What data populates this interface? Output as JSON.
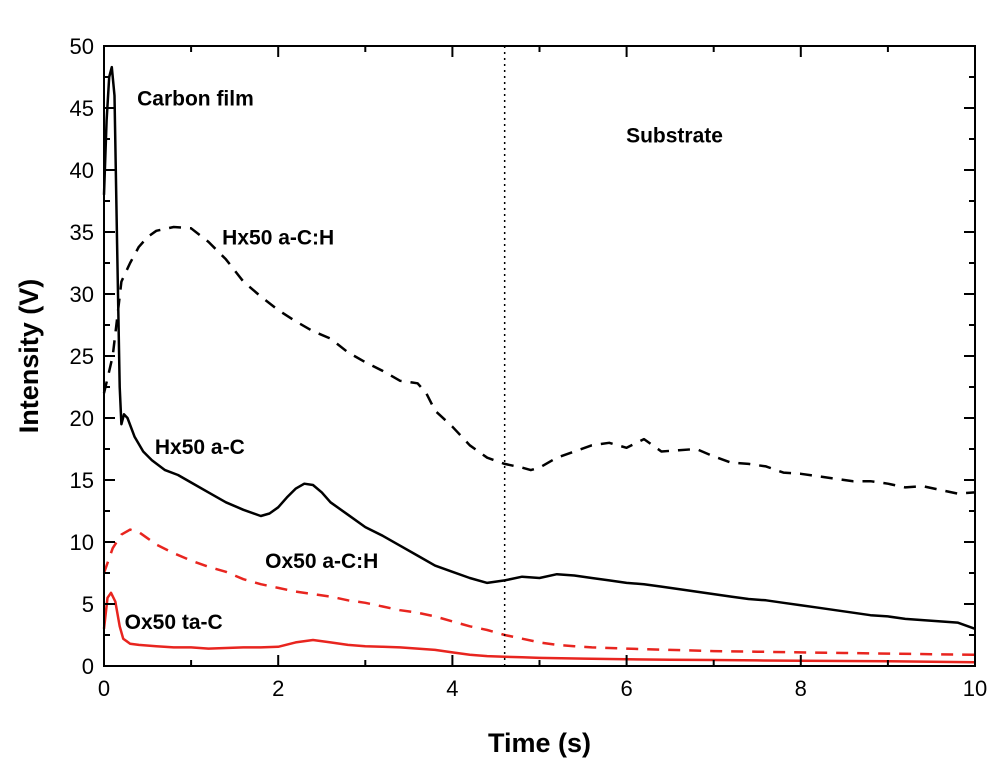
{
  "chart_data": {
    "type": "line",
    "title": "",
    "xlabel": "Time (s)",
    "ylabel": "Intensity (V)",
    "xlim": [
      0,
      10
    ],
    "ylim": [
      0,
      50
    ],
    "x_ticks": [
      "0",
      "2",
      "4",
      "6",
      "8",
      "10"
    ],
    "y_ticks": [
      "0",
      "5",
      "10",
      "15",
      "20",
      "25",
      "30",
      "35",
      "40",
      "45",
      "50"
    ],
    "grid": false,
    "legend": "none",
    "vertical_marker": {
      "x": 4.6,
      "style": "dotted"
    },
    "annotations": [
      {
        "text": "Carbon film",
        "x": 1.05,
        "y": 45.2
      },
      {
        "text": "Substrate",
        "x": 6.55,
        "y": 42.2
      },
      {
        "text": "Hx50 a-C:H",
        "x": 2.0,
        "y": 34.0
      },
      {
        "text": "Hx50 a-C",
        "x": 1.1,
        "y": 17.1
      },
      {
        "text": "Ox50 a-C:H",
        "x": 2.5,
        "y": 7.9
      },
      {
        "text": "Ox50 ta-C",
        "x": 0.8,
        "y": 3.0
      }
    ],
    "series": [
      {
        "name": "Hx50 a-C:H",
        "color": "#000000",
        "dash": "dashed",
        "points": [
          [
            0.0,
            22.0
          ],
          [
            0.05,
            23.5
          ],
          [
            0.1,
            25.0
          ],
          [
            0.15,
            28.0
          ],
          [
            0.2,
            31.0
          ],
          [
            0.3,
            32.5
          ],
          [
            0.4,
            33.8
          ],
          [
            0.5,
            34.6
          ],
          [
            0.6,
            35.1
          ],
          [
            0.8,
            35.4
          ],
          [
            1.0,
            35.3
          ],
          [
            1.2,
            34.2
          ],
          [
            1.4,
            32.8
          ],
          [
            1.6,
            31.0
          ],
          [
            1.8,
            29.8
          ],
          [
            2.0,
            28.7
          ],
          [
            2.2,
            27.8
          ],
          [
            2.4,
            27.0
          ],
          [
            2.6,
            26.4
          ],
          [
            2.8,
            25.3
          ],
          [
            3.0,
            24.5
          ],
          [
            3.2,
            23.8
          ],
          [
            3.4,
            23.0
          ],
          [
            3.6,
            22.8
          ],
          [
            3.7,
            22.0
          ],
          [
            3.8,
            20.6
          ],
          [
            4.0,
            19.3
          ],
          [
            4.2,
            17.8
          ],
          [
            4.4,
            16.8
          ],
          [
            4.6,
            16.3
          ],
          [
            4.8,
            16.0
          ],
          [
            4.9,
            15.8
          ],
          [
            5.0,
            16.0
          ],
          [
            5.2,
            16.8
          ],
          [
            5.4,
            17.3
          ],
          [
            5.6,
            17.8
          ],
          [
            5.8,
            18.0
          ],
          [
            6.0,
            17.6
          ],
          [
            6.2,
            18.3
          ],
          [
            6.4,
            17.3
          ],
          [
            6.6,
            17.4
          ],
          [
            6.8,
            17.5
          ],
          [
            7.0,
            16.9
          ],
          [
            7.2,
            16.4
          ],
          [
            7.4,
            16.3
          ],
          [
            7.6,
            16.1
          ],
          [
            7.8,
            15.6
          ],
          [
            8.0,
            15.5
          ],
          [
            8.2,
            15.3
          ],
          [
            8.4,
            15.1
          ],
          [
            8.6,
            14.9
          ],
          [
            8.8,
            14.9
          ],
          [
            9.0,
            14.7
          ],
          [
            9.2,
            14.4
          ],
          [
            9.4,
            14.5
          ],
          [
            9.6,
            14.2
          ],
          [
            9.8,
            13.9
          ],
          [
            10.0,
            14.0
          ]
        ]
      },
      {
        "name": "Hx50 a-C",
        "color": "#000000",
        "dash": "solid",
        "points": [
          [
            0.0,
            38.0
          ],
          [
            0.03,
            44.0
          ],
          [
            0.06,
            47.5
          ],
          [
            0.09,
            48.3
          ],
          [
            0.12,
            46.0
          ],
          [
            0.15,
            34.0
          ],
          [
            0.18,
            22.5
          ],
          [
            0.2,
            19.5
          ],
          [
            0.23,
            20.3
          ],
          [
            0.27,
            20.0
          ],
          [
            0.35,
            18.5
          ],
          [
            0.45,
            17.3
          ],
          [
            0.55,
            16.6
          ],
          [
            0.7,
            15.8
          ],
          [
            0.85,
            15.4
          ],
          [
            1.0,
            14.8
          ],
          [
            1.2,
            14.0
          ],
          [
            1.4,
            13.2
          ],
          [
            1.6,
            12.6
          ],
          [
            1.8,
            12.1
          ],
          [
            1.9,
            12.3
          ],
          [
            2.0,
            12.8
          ],
          [
            2.1,
            13.6
          ],
          [
            2.2,
            14.3
          ],
          [
            2.3,
            14.7
          ],
          [
            2.4,
            14.6
          ],
          [
            2.5,
            14.0
          ],
          [
            2.6,
            13.2
          ],
          [
            2.8,
            12.2
          ],
          [
            3.0,
            11.2
          ],
          [
            3.2,
            10.5
          ],
          [
            3.4,
            9.7
          ],
          [
            3.6,
            8.9
          ],
          [
            3.8,
            8.1
          ],
          [
            4.0,
            7.6
          ],
          [
            4.2,
            7.1
          ],
          [
            4.4,
            6.7
          ],
          [
            4.6,
            6.9
          ],
          [
            4.8,
            7.2
          ],
          [
            5.0,
            7.1
          ],
          [
            5.2,
            7.4
          ],
          [
            5.4,
            7.3
          ],
          [
            5.6,
            7.1
          ],
          [
            5.8,
            6.9
          ],
          [
            6.0,
            6.7
          ],
          [
            6.2,
            6.6
          ],
          [
            6.4,
            6.4
          ],
          [
            6.6,
            6.2
          ],
          [
            6.8,
            6.0
          ],
          [
            7.0,
            5.8
          ],
          [
            7.2,
            5.6
          ],
          [
            7.4,
            5.4
          ],
          [
            7.6,
            5.3
          ],
          [
            7.8,
            5.1
          ],
          [
            8.0,
            4.9
          ],
          [
            8.2,
            4.7
          ],
          [
            8.4,
            4.5
          ],
          [
            8.6,
            4.3
          ],
          [
            8.8,
            4.1
          ],
          [
            9.0,
            4.0
          ],
          [
            9.2,
            3.8
          ],
          [
            9.4,
            3.7
          ],
          [
            9.6,
            3.6
          ],
          [
            9.8,
            3.5
          ],
          [
            10.0,
            3.0
          ]
        ]
      },
      {
        "name": "Ox50 a-C:H",
        "color": "#e8251f",
        "dash": "dashed",
        "points": [
          [
            0.0,
            7.5
          ],
          [
            0.1,
            9.5
          ],
          [
            0.2,
            10.6
          ],
          [
            0.3,
            11.0
          ],
          [
            0.4,
            10.8
          ],
          [
            0.5,
            10.3
          ],
          [
            0.6,
            9.8
          ],
          [
            0.8,
            9.1
          ],
          [
            1.0,
            8.5
          ],
          [
            1.2,
            8.0
          ],
          [
            1.4,
            7.6
          ],
          [
            1.6,
            7.0
          ],
          [
            1.8,
            6.6
          ],
          [
            2.0,
            6.3
          ],
          [
            2.2,
            6.0
          ],
          [
            2.4,
            5.8
          ],
          [
            2.6,
            5.6
          ],
          [
            2.8,
            5.3
          ],
          [
            3.0,
            5.1
          ],
          [
            3.2,
            4.8
          ],
          [
            3.4,
            4.5
          ],
          [
            3.6,
            4.3
          ],
          [
            3.8,
            4.0
          ],
          [
            4.0,
            3.6
          ],
          [
            4.2,
            3.2
          ],
          [
            4.4,
            2.9
          ],
          [
            4.6,
            2.5
          ],
          [
            4.8,
            2.2
          ],
          [
            5.0,
            1.9
          ],
          [
            5.2,
            1.7
          ],
          [
            5.4,
            1.6
          ],
          [
            5.6,
            1.5
          ],
          [
            6.0,
            1.4
          ],
          [
            6.5,
            1.3
          ],
          [
            7.0,
            1.2
          ],
          [
            7.5,
            1.15
          ],
          [
            8.0,
            1.1
          ],
          [
            8.5,
            1.05
          ],
          [
            9.0,
            1.0
          ],
          [
            9.5,
            0.95
          ],
          [
            10.0,
            0.9
          ]
        ]
      },
      {
        "name": "Ox50 ta-C",
        "color": "#e8251f",
        "dash": "solid",
        "points": [
          [
            0.0,
            3.0
          ],
          [
            0.04,
            5.5
          ],
          [
            0.08,
            5.9
          ],
          [
            0.13,
            5.2
          ],
          [
            0.18,
            3.2
          ],
          [
            0.22,
            2.2
          ],
          [
            0.3,
            1.8
          ],
          [
            0.4,
            1.7
          ],
          [
            0.6,
            1.6
          ],
          [
            0.8,
            1.5
          ],
          [
            1.0,
            1.5
          ],
          [
            1.2,
            1.4
          ],
          [
            1.4,
            1.45
          ],
          [
            1.6,
            1.5
          ],
          [
            1.8,
            1.5
          ],
          [
            2.0,
            1.55
          ],
          [
            2.2,
            1.9
          ],
          [
            2.4,
            2.1
          ],
          [
            2.6,
            1.9
          ],
          [
            2.8,
            1.7
          ],
          [
            3.0,
            1.6
          ],
          [
            3.2,
            1.55
          ],
          [
            3.4,
            1.5
          ],
          [
            3.6,
            1.4
          ],
          [
            3.8,
            1.3
          ],
          [
            4.0,
            1.1
          ],
          [
            4.2,
            0.9
          ],
          [
            4.4,
            0.8
          ],
          [
            4.6,
            0.75
          ],
          [
            4.8,
            0.7
          ],
          [
            5.0,
            0.65
          ],
          [
            5.5,
            0.6
          ],
          [
            6.0,
            0.55
          ],
          [
            6.5,
            0.5
          ],
          [
            7.0,
            0.48
          ],
          [
            7.5,
            0.45
          ],
          [
            8.0,
            0.42
          ],
          [
            8.5,
            0.4
          ],
          [
            9.0,
            0.38
          ],
          [
            9.5,
            0.35
          ],
          [
            10.0,
            0.3
          ]
        ]
      }
    ]
  }
}
